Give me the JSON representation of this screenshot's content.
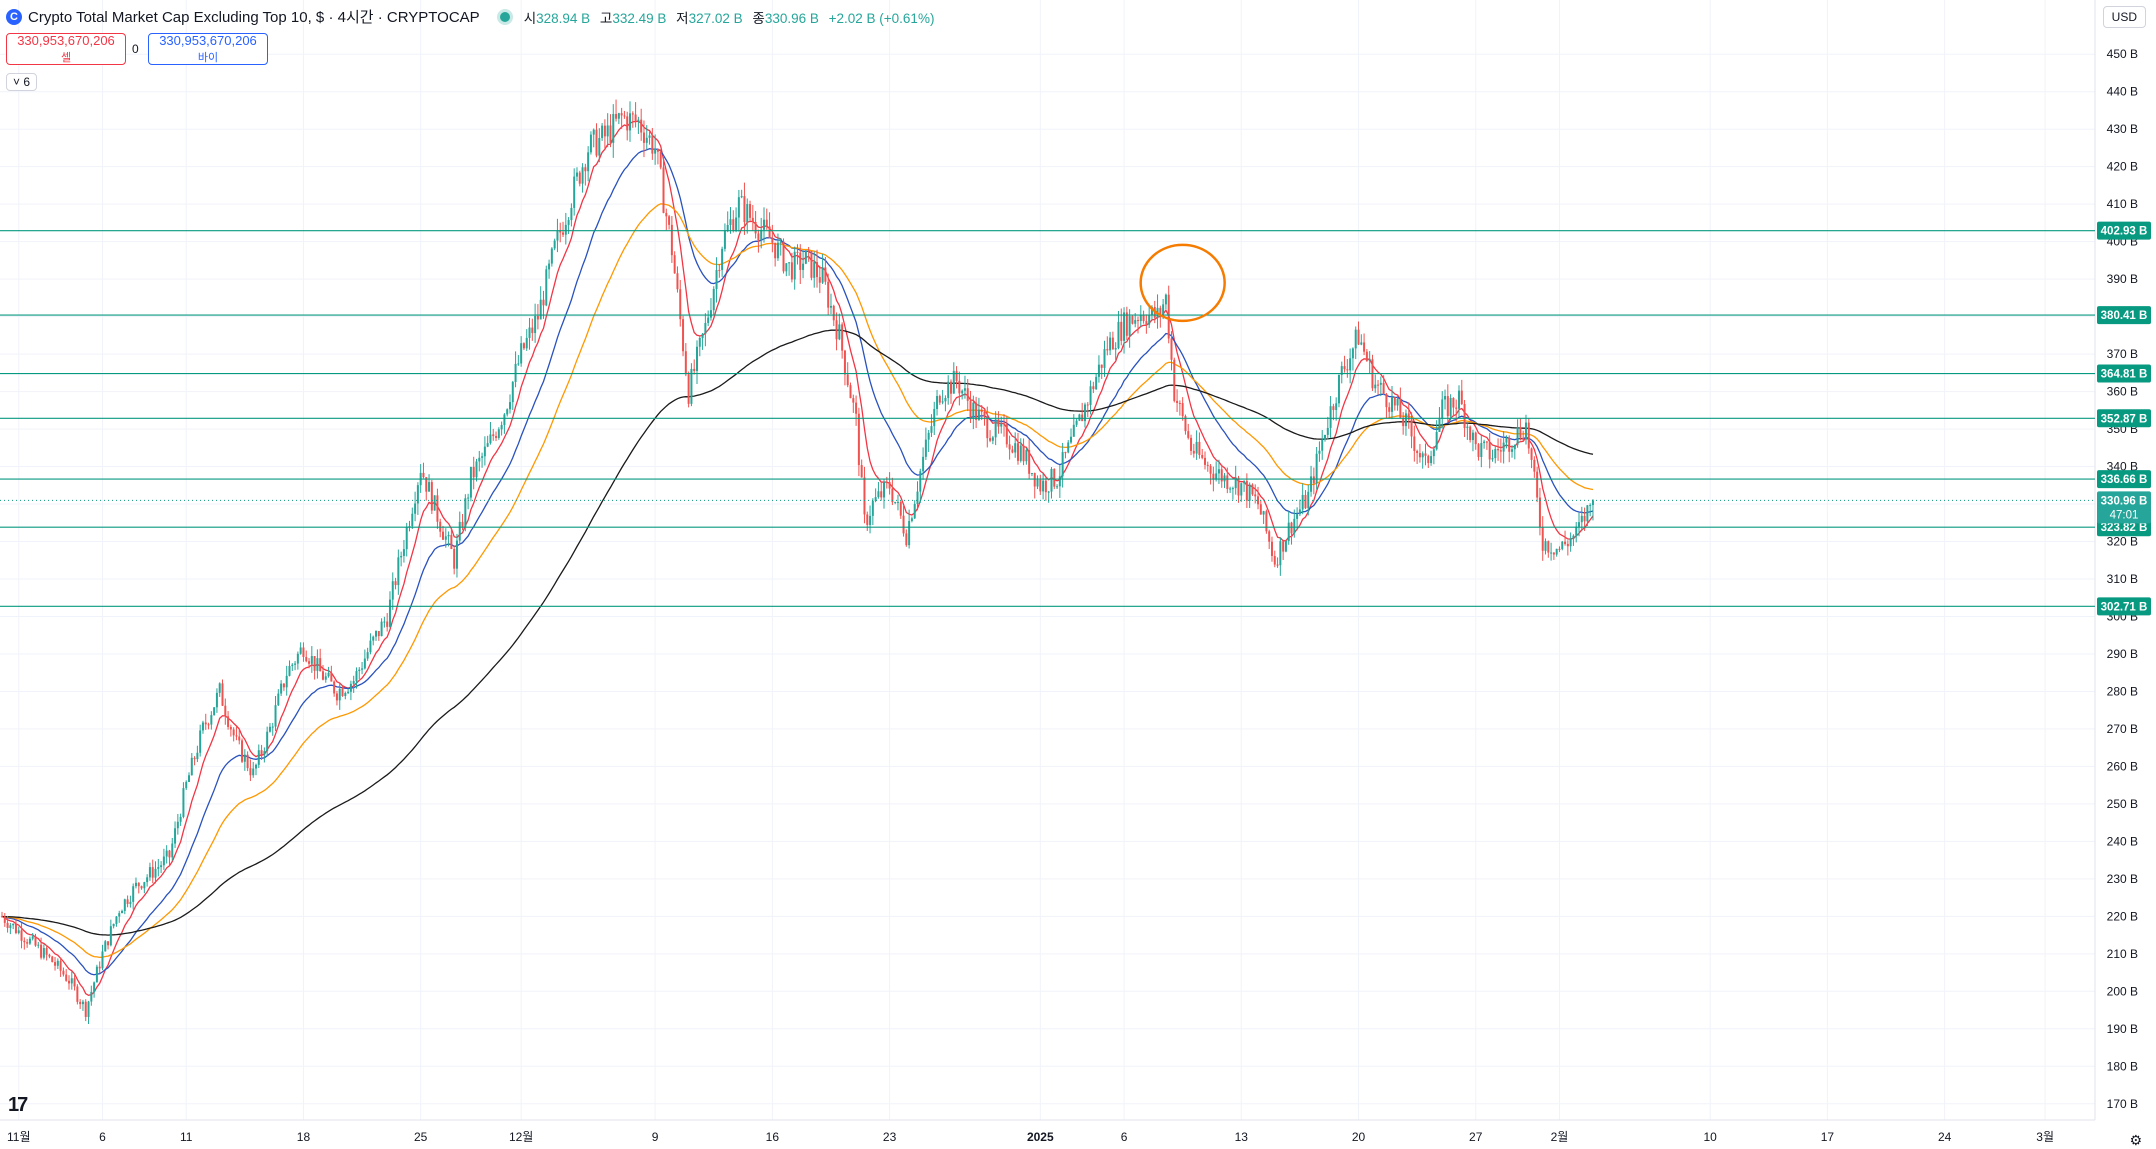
{
  "header": {
    "symbol_icon": "C",
    "title": "Crypto Total Market Cap Excluding Top 10, $ · 4시간 · CRYPTOCAP",
    "ohlc": {
      "open_label": "시",
      "open": "328.94 B",
      "high_label": "고",
      "high": "332.49 B",
      "low_label": "저",
      "low": "327.02 B",
      "close_label": "종",
      "close": "330.96 B",
      "change": "+2.02 B (+0.61%)"
    }
  },
  "trade": {
    "sell_price": "330,953,670,206",
    "sell_label": "셀",
    "spread": "0",
    "buy_price": "330,953,670,206",
    "buy_label": "바이"
  },
  "indicator_toggle": "˅ 6",
  "currency": "USD",
  "logo": "17",
  "settings_icon": "gear-icon",
  "colors": {
    "up": "#26a69a",
    "down": "#ef5350",
    "hline": "#089981",
    "ema_red": "#f23645",
    "ema_blue": "#2a52be",
    "ema_orange": "#ff9800",
    "ema_black": "#1a1a1a",
    "circle": "#f57c00"
  },
  "chart_data": {
    "type": "candlestick",
    "title": "Crypto Total Market Cap Excluding Top 10, $",
    "timeframe": "4시간",
    "xlabel": "",
    "ylabel": "USD",
    "ylim": [
      167,
      457
    ],
    "y_ticks": [
      170,
      180,
      190,
      200,
      210,
      220,
      230,
      240,
      250,
      260,
      270,
      280,
      290,
      300,
      310,
      320,
      330,
      340,
      350,
      360,
      370,
      380,
      390,
      400,
      410,
      420,
      430,
      440,
      450
    ],
    "y_tick_suffix": " B",
    "x_ticks": [
      {
        "label": "11월",
        "day": 1
      },
      {
        "label": "6",
        "day": 6
      },
      {
        "label": "11",
        "day": 11
      },
      {
        "label": "18",
        "day": 18
      },
      {
        "label": "25",
        "day": 25
      },
      {
        "label": "12월",
        "day": 31
      },
      {
        "label": "9",
        "day": 39
      },
      {
        "label": "16",
        "day": 46
      },
      {
        "label": "23",
        "day": 53
      },
      {
        "label": "2025",
        "day": 62
      },
      {
        "label": "6",
        "day": 67
      },
      {
        "label": "13",
        "day": 74
      },
      {
        "label": "20",
        "day": 81
      },
      {
        "label": "27",
        "day": 88
      },
      {
        "label": "2월",
        "day": 93
      },
      {
        "label": "10",
        "day": 102
      },
      {
        "label": "17",
        "day": 109
      },
      {
        "label": "24",
        "day": 116
      },
      {
        "label": "3월",
        "day": 122
      }
    ],
    "xlim_days": [
      0,
      124.5
    ],
    "horizontal_levels": [
      402.93,
      380.41,
      364.81,
      352.87,
      336.66,
      323.82,
      302.71
    ],
    "level_labels": [
      "402.93 B",
      "380.41 B",
      "364.81 B",
      "352.87 B",
      "336.66 B",
      "323.82 B",
      "302.71 B"
    ],
    "last_price": 330.96,
    "last_price_label": "330.96 B",
    "countdown": "47:01",
    "price_path_daily_close": [
      [
        0,
        220
      ],
      [
        1.5,
        214
      ],
      [
        3,
        208
      ],
      [
        4,
        203
      ],
      [
        5,
        195
      ],
      [
        6,
        210
      ],
      [
        7,
        222
      ],
      [
        8,
        228
      ],
      [
        9,
        232
      ],
      [
        10,
        236
      ],
      [
        11,
        255
      ],
      [
        12,
        270
      ],
      [
        13,
        280
      ],
      [
        14,
        266
      ],
      [
        15,
        258
      ],
      [
        16,
        270
      ],
      [
        17,
        285
      ],
      [
        18,
        292
      ],
      [
        19,
        285
      ],
      [
        20,
        280
      ],
      [
        21,
        283
      ],
      [
        22,
        292
      ],
      [
        23,
        300
      ],
      [
        24,
        320
      ],
      [
        25,
        340
      ],
      [
        26,
        327
      ],
      [
        27,
        315
      ],
      [
        28,
        337
      ],
      [
        29,
        345
      ],
      [
        30,
        355
      ],
      [
        31,
        370
      ],
      [
        32,
        380
      ],
      [
        33,
        398
      ],
      [
        34,
        412
      ],
      [
        35,
        425
      ],
      [
        36,
        428
      ],
      [
        37,
        433
      ],
      [
        38,
        432
      ],
      [
        39,
        425
      ],
      [
        40,
        398
      ],
      [
        41,
        360
      ],
      [
        42,
        377
      ],
      [
        43,
        400
      ],
      [
        44,
        410
      ],
      [
        45,
        405
      ],
      [
        46,
        400
      ],
      [
        47,
        393
      ],
      [
        48,
        395
      ],
      [
        49,
        390
      ],
      [
        50,
        375
      ],
      [
        51,
        352
      ],
      [
        51.5,
        325
      ],
      [
        52,
        330
      ],
      [
        53,
        335
      ],
      [
        54,
        322
      ],
      [
        55,
        342
      ],
      [
        56,
        360
      ],
      [
        57,
        363
      ],
      [
        58,
        355
      ],
      [
        59,
        350
      ],
      [
        60,
        348
      ],
      [
        61,
        343
      ],
      [
        62,
        335
      ],
      [
        63,
        337
      ],
      [
        64,
        348
      ],
      [
        65,
        360
      ],
      [
        66,
        372
      ],
      [
        67,
        378
      ],
      [
        68,
        381
      ],
      [
        69,
        380
      ],
      [
        69.5,
        385
      ],
      [
        70,
        360
      ],
      [
        71,
        345
      ],
      [
        72,
        340
      ],
      [
        73,
        337
      ],
      [
        74,
        335
      ],
      [
        75,
        330
      ],
      [
        76,
        315
      ],
      [
        77,
        325
      ],
      [
        78,
        332
      ],
      [
        79,
        350
      ],
      [
        80,
        365
      ],
      [
        81,
        375
      ],
      [
        82,
        362
      ],
      [
        83,
        357
      ],
      [
        84,
        350
      ],
      [
        85,
        340
      ],
      [
        86,
        355
      ],
      [
        87,
        358
      ],
      [
        88,
        345
      ],
      [
        89,
        343
      ],
      [
        90,
        347
      ],
      [
        91,
        351
      ],
      [
        92,
        320
      ],
      [
        93,
        318
      ],
      [
        94,
        322
      ],
      [
        95,
        331
      ]
    ],
    "series": [
      {
        "name": "candles",
        "color_up": "#26a69a",
        "color_down": "#ef5350"
      },
      {
        "name": "EMA fast",
        "color": "#f23645"
      },
      {
        "name": "EMA medium",
        "color": "#2a52be"
      },
      {
        "name": "EMA slow",
        "color": "#ff9800"
      },
      {
        "name": "EMA 200",
        "color": "#1a1a1a"
      }
    ],
    "annotation": {
      "type": "ellipse",
      "day": 70.5,
      "price": 389,
      "color": "#f57c00"
    }
  }
}
